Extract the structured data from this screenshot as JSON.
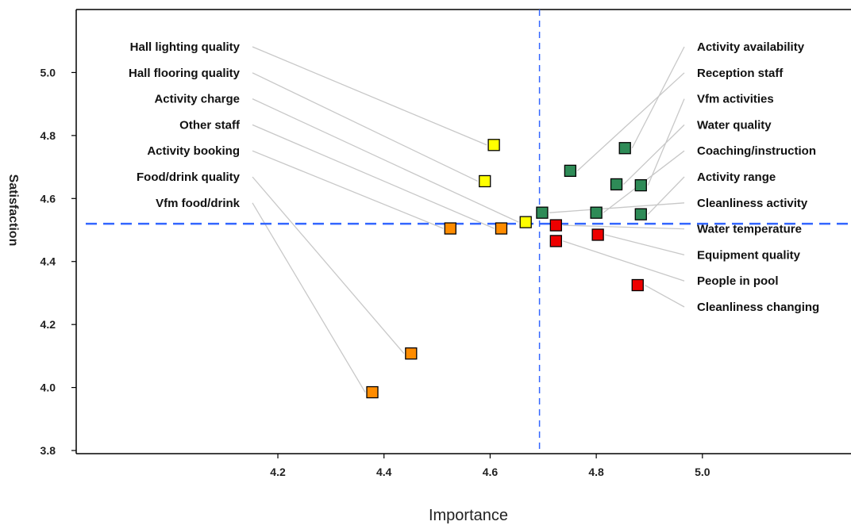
{
  "chart_data": {
    "type": "scatter",
    "xlabel": "Importance",
    "ylabel": "Satisfaction",
    "xlim": [
      3.82,
      5.28
    ],
    "ylim": [
      3.79,
      5.2
    ],
    "xticks": [
      "4.2",
      "4.4",
      "4.6",
      "4.8",
      "5.0"
    ],
    "yticks": [
      "3.8",
      "4.0",
      "4.2",
      "4.4",
      "4.6",
      "4.8",
      "5.0"
    ],
    "mean_x": 4.693,
    "mean_y": 4.52,
    "colors": {
      "yellow": "#ffff00",
      "green": "#2e8b57",
      "orange": "#ff8c00",
      "red": "#ee0000",
      "mean_line": "#3366ff",
      "leader": "#c8c8c8"
    },
    "points": [
      {
        "label": "Hall lighting quality",
        "x": 4.607,
        "y": 4.77,
        "color": "yellow",
        "side": "left"
      },
      {
        "label": "Hall flooring quality",
        "x": 4.59,
        "y": 4.655,
        "color": "yellow",
        "side": "left"
      },
      {
        "label": "Activity charge",
        "x": 4.667,
        "y": 4.525,
        "color": "yellow",
        "side": "left"
      },
      {
        "label": "Other staff",
        "x": 4.621,
        "y": 4.505,
        "color": "orange",
        "side": "left"
      },
      {
        "label": "Activity booking",
        "x": 4.525,
        "y": 4.505,
        "color": "orange",
        "side": "left"
      },
      {
        "label": "Food/drink quality",
        "x": 4.451,
        "y": 4.108,
        "color": "orange",
        "side": "left"
      },
      {
        "label": "Vfm food/drink",
        "x": 4.378,
        "y": 3.985,
        "color": "orange",
        "side": "left"
      },
      {
        "label": "Activity availability",
        "x": 4.854,
        "y": 4.76,
        "color": "green",
        "side": "right"
      },
      {
        "label": "Reception staff",
        "x": 4.751,
        "y": 4.688,
        "color": "green",
        "side": "right"
      },
      {
        "label": "Vfm activities",
        "x": 4.884,
        "y": 4.642,
        "color": "green",
        "side": "right"
      },
      {
        "label": "Water quality",
        "x": 4.838,
        "y": 4.645,
        "color": "green",
        "side": "right"
      },
      {
        "label": "Coaching/instruction",
        "x": 4.8,
        "y": 4.555,
        "color": "green",
        "side": "right"
      },
      {
        "label": "Activity range",
        "x": 4.884,
        "y": 4.55,
        "color": "green",
        "side": "right"
      },
      {
        "label": "Cleanliness activity",
        "x": 4.698,
        "y": 4.555,
        "color": "green",
        "side": "right"
      },
      {
        "label": "Water temperature",
        "x": 4.724,
        "y": 4.515,
        "color": "red",
        "side": "right"
      },
      {
        "label": "Equipment quality",
        "x": 4.803,
        "y": 4.485,
        "color": "red",
        "side": "right"
      },
      {
        "label": "People in pool",
        "x": 4.724,
        "y": 4.465,
        "color": "red",
        "side": "right"
      },
      {
        "label": "Cleanliness changing",
        "x": 4.878,
        "y": 4.325,
        "color": "red",
        "side": "right"
      }
    ]
  }
}
